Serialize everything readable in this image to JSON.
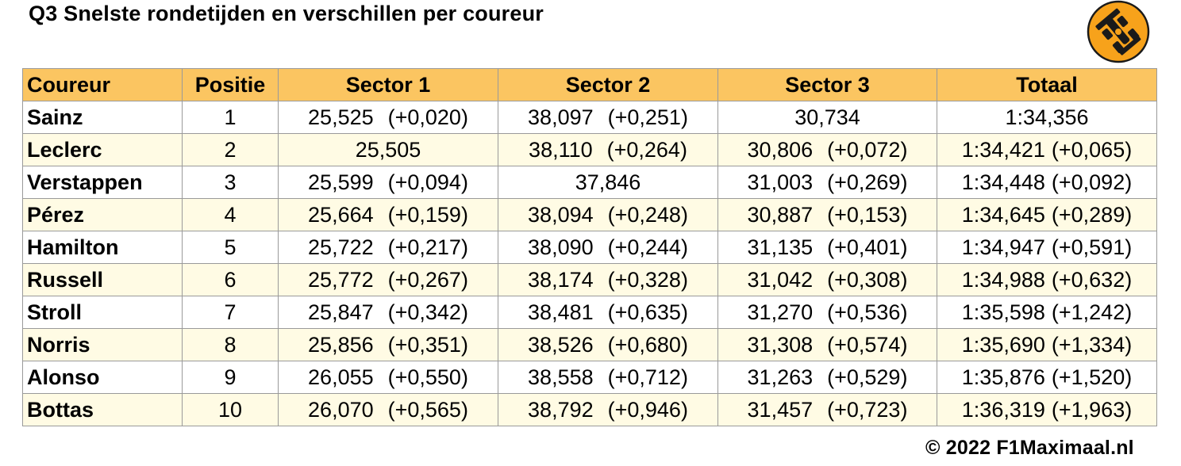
{
  "title": "Q3 Snelste rondetijden en verschillen per coureur",
  "headers": {
    "driver": "Coureur",
    "position": "Positie",
    "sector1": "Sector 1",
    "sector2": "Sector 2",
    "sector3": "Sector 3",
    "total": "Totaal"
  },
  "rows": [
    {
      "driver": "Sainz",
      "position": "1",
      "s1": "25,525",
      "s1_diff": "(+0,020)",
      "s2": "38,097",
      "s2_diff": "(+0,251)",
      "s3": "30,734",
      "s3_diff": "",
      "total": "1:34,356",
      "total_diff": ""
    },
    {
      "driver": "Leclerc",
      "position": "2",
      "s1": "25,505",
      "s1_diff": "",
      "s2": "38,110",
      "s2_diff": "(+0,264)",
      "s3": "30,806",
      "s3_diff": "(+0,072)",
      "total": "1:34,421",
      "total_diff": "(+0,065)"
    },
    {
      "driver": "Verstappen",
      "position": "3",
      "s1": "25,599",
      "s1_diff": "(+0,094)",
      "s2": "37,846",
      "s2_diff": "",
      "s3": "31,003",
      "s3_diff": "(+0,269)",
      "total": "1:34,448",
      "total_diff": "(+0,092)"
    },
    {
      "driver": "Pérez",
      "position": "4",
      "s1": "25,664",
      "s1_diff": "(+0,159)",
      "s2": "38,094",
      "s2_diff": "(+0,248)",
      "s3": "30,887",
      "s3_diff": "(+0,153)",
      "total": "1:34,645",
      "total_diff": "(+0,289)"
    },
    {
      "driver": "Hamilton",
      "position": "5",
      "s1": "25,722",
      "s1_diff": "(+0,217)",
      "s2": "38,090",
      "s2_diff": "(+0,244)",
      "s3": "31,135",
      "s3_diff": "(+0,401)",
      "total": "1:34,947",
      "total_diff": "(+0,591)"
    },
    {
      "driver": "Russell",
      "position": "6",
      "s1": "25,772",
      "s1_diff": "(+0,267)",
      "s2": "38,174",
      "s2_diff": "(+0,328)",
      "s3": "31,042",
      "s3_diff": "(+0,308)",
      "total": "1:34,988",
      "total_diff": "(+0,632)"
    },
    {
      "driver": "Stroll",
      "position": "7",
      "s1": "25,847",
      "s1_diff": "(+0,342)",
      "s2": "38,481",
      "s2_diff": "(+0,635)",
      "s3": "31,270",
      "s3_diff": "(+0,536)",
      "total": "1:35,598",
      "total_diff": "(+1,242)"
    },
    {
      "driver": "Norris",
      "position": "8",
      "s1": "25,856",
      "s1_diff": "(+0,351)",
      "s2": "38,526",
      "s2_diff": "(+0,680)",
      "s3": "31,308",
      "s3_diff": "(+0,574)",
      "total": "1:35,690",
      "total_diff": "(+1,334)"
    },
    {
      "driver": "Alonso",
      "position": "9",
      "s1": "26,055",
      "s1_diff": "(+0,550)",
      "s2": "38,558",
      "s2_diff": "(+0,712)",
      "s3": "31,263",
      "s3_diff": "(+0,529)",
      "total": "1:35,876",
      "total_diff": "(+1,520)"
    },
    {
      "driver": "Bottas",
      "position": "10",
      "s1": "26,070",
      "s1_diff": "(+0,565)",
      "s2": "38,792",
      "s2_diff": "(+0,946)",
      "s3": "31,457",
      "s3_diff": "(+0,723)",
      "total": "1:36,319",
      "total_diff": "(+1,963)"
    }
  ],
  "footer": "© 2022 F1Maximaal.nl",
  "logo": {
    "icon": "f1-car-icon",
    "color": "#f7a21b"
  },
  "colors": {
    "header_bg": "#fbc561",
    "row_alt_bg": "#fffbe4",
    "border": "#9a9a9a"
  }
}
